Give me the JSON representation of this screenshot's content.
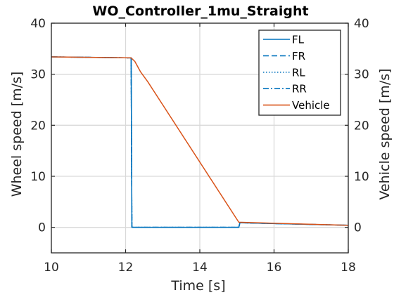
{
  "chart_data": {
    "type": "line",
    "title": "WO_Controller_1mu_Straight",
    "xlabel": "Time [s]",
    "ylabel_left": "Wheel speed [m/s]",
    "ylabel_right": "Vehicle speed [m/s]",
    "xlim": [
      10,
      18
    ],
    "ylim": [
      -5,
      40
    ],
    "xticks": [
      "10",
      "12",
      "14",
      "16",
      "18"
    ],
    "yticks": [
      "0",
      "10",
      "20",
      "30",
      "40"
    ],
    "grid": true,
    "legend_position": "top-right",
    "series": [
      {
        "name": "FL",
        "color": "#0072BD",
        "style": "solid",
        "points": [
          [
            10,
            33.4
          ],
          [
            12.15,
            33.2
          ],
          [
            12.17,
            0
          ],
          [
            15.05,
            0
          ],
          [
            15.08,
            0.9
          ],
          [
            18,
            0.4
          ]
        ]
      },
      {
        "name": "FR",
        "color": "#0072BD",
        "style": "dashed",
        "points": [
          [
            10,
            33.4
          ],
          [
            12.15,
            33.2
          ],
          [
            12.17,
            0
          ],
          [
            15.05,
            0
          ],
          [
            15.08,
            0.9
          ],
          [
            18,
            0.4
          ]
        ]
      },
      {
        "name": "RL",
        "color": "#0072BD",
        "style": "dotted",
        "points": [
          [
            10,
            33.4
          ],
          [
            12.15,
            33.2
          ],
          [
            12.17,
            0
          ],
          [
            15.05,
            0
          ],
          [
            15.08,
            0.9
          ],
          [
            18,
            0.4
          ]
        ]
      },
      {
        "name": "RR",
        "color": "#0072BD",
        "style": "dashdot",
        "points": [
          [
            10,
            33.4
          ],
          [
            12.15,
            33.2
          ],
          [
            12.17,
            0
          ],
          [
            15.05,
            0
          ],
          [
            15.08,
            0.9
          ],
          [
            18,
            0.4
          ]
        ]
      },
      {
        "name": "Vehicle",
        "color": "#D95319",
        "style": "solid",
        "points": [
          [
            10,
            33.4
          ],
          [
            12.15,
            33.2
          ],
          [
            12.25,
            32.5
          ],
          [
            12.4,
            30.5
          ],
          [
            12.6,
            28.5
          ],
          [
            15.05,
            1.0
          ],
          [
            18,
            0.4
          ]
        ]
      }
    ]
  }
}
